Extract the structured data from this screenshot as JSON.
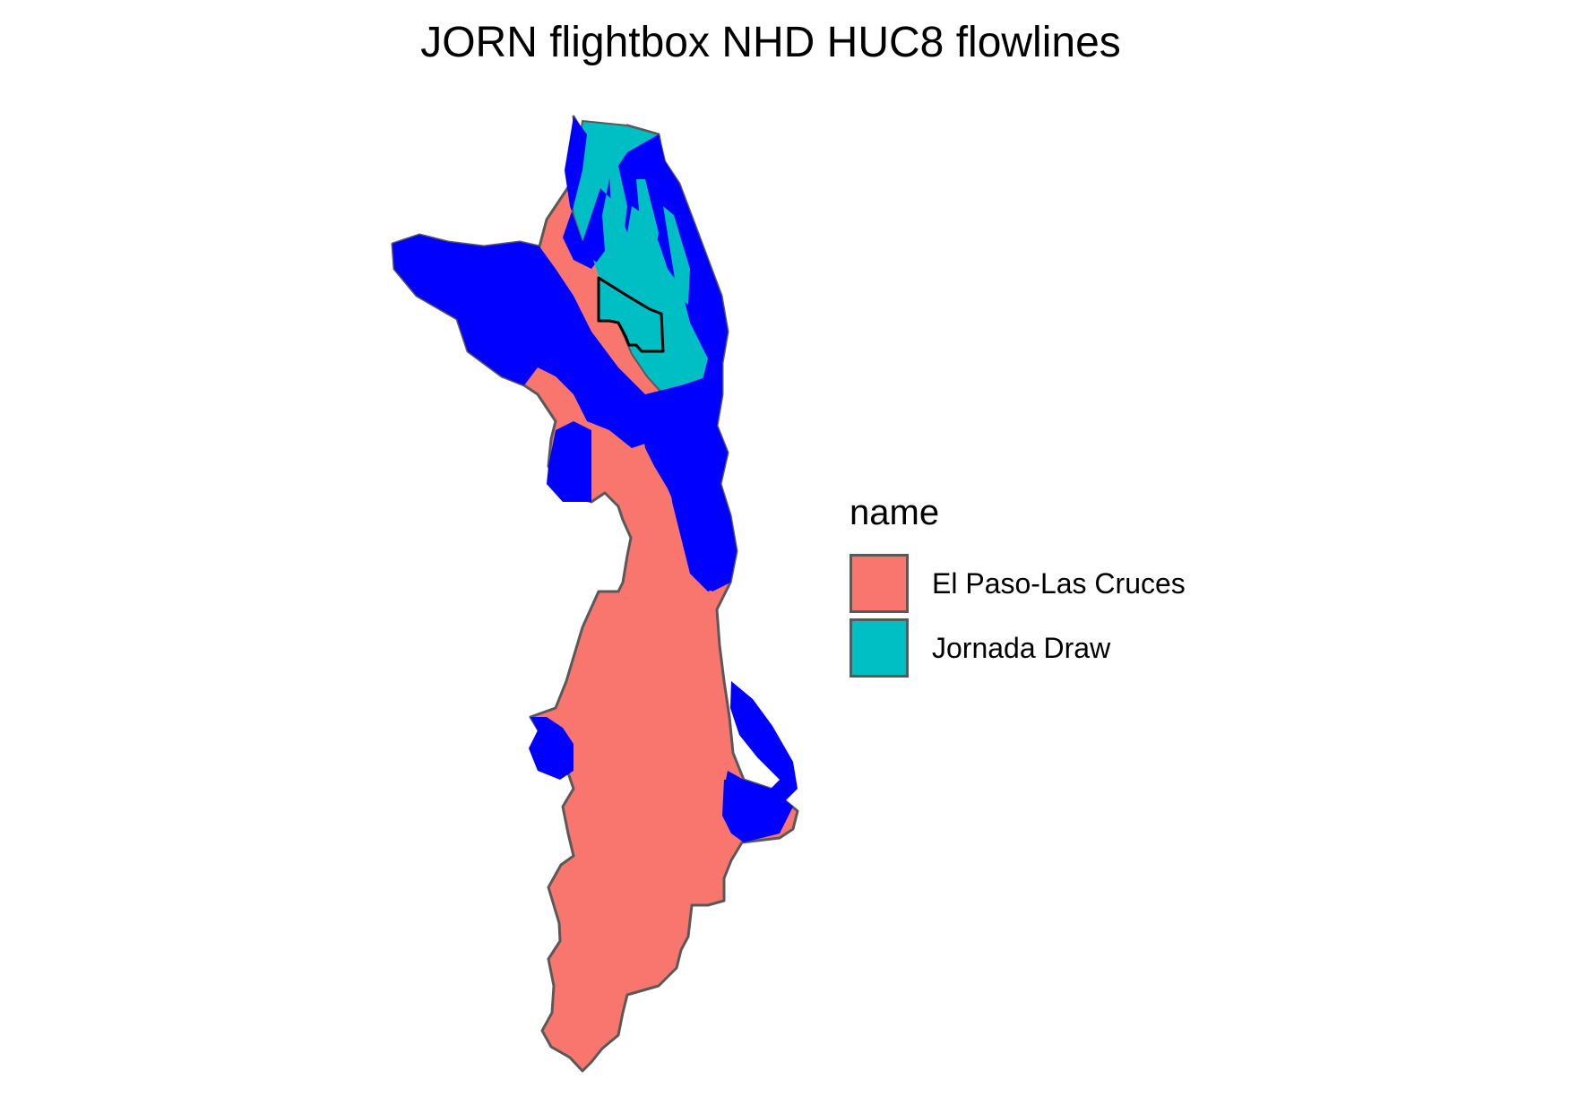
{
  "map": {
    "title": "JORN flightbox NHD HUC8 flowlines",
    "colors": {
      "el_paso": "#F8766D",
      "jornada": "#00BFC4",
      "flowlines": "#0000FF",
      "boundary": "#595959",
      "flightbox": "#000000"
    }
  },
  "legend": {
    "title": "name",
    "items": [
      {
        "label": "El Paso-Las Cruces",
        "color": "#F8766D"
      },
      {
        "label": "Jornada Draw",
        "color": "#00BFC4"
      }
    ]
  }
}
